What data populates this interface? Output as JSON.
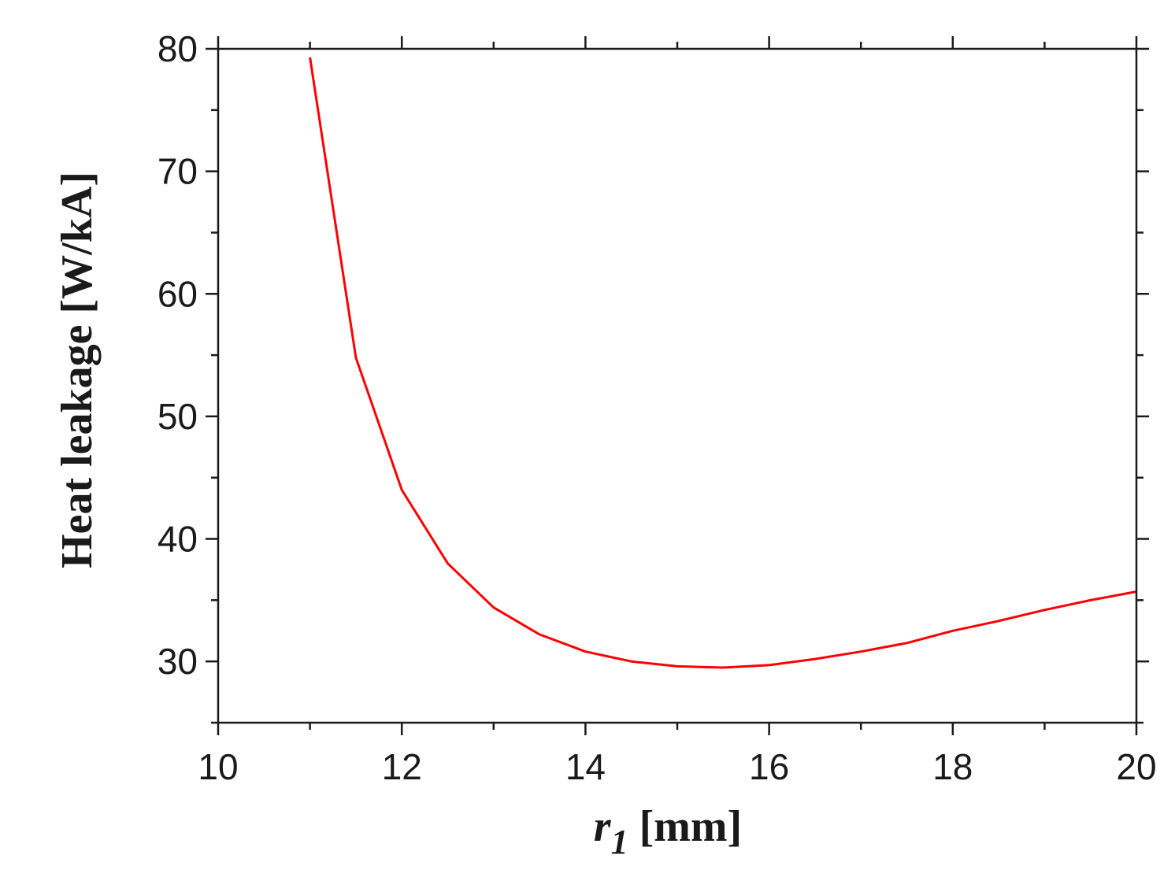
{
  "chart_data": {
    "type": "line",
    "title": "",
    "xlabel": "r1 [mm]",
    "xlabel_var": "r",
    "xlabel_sub": "1",
    "xlabel_unit": " [mm]",
    "ylabel": "Heat leakage [W/kA]",
    "xlim": [
      10,
      20
    ],
    "ylim": [
      25,
      80
    ],
    "x_major_ticks": [
      10,
      12,
      14,
      16,
      18,
      20
    ],
    "x_minor_ticks": [
      11,
      13,
      15,
      17,
      19
    ],
    "y_major_ticks": [
      30,
      40,
      50,
      60,
      70,
      80
    ],
    "y_minor_ticks": [
      25,
      35,
      45,
      55,
      65,
      75
    ],
    "x_tick_labels": [
      "10",
      "12",
      "14",
      "16",
      "18",
      "20"
    ],
    "y_tick_labels": [
      "30",
      "40",
      "50",
      "60",
      "70",
      "80"
    ],
    "grid": false,
    "series": [
      {
        "color": "#ff0000",
        "x": [
          11.0,
          11.5,
          12.0,
          12.5,
          13.0,
          13.5,
          14.0,
          14.5,
          15.0,
          15.5,
          16.0,
          16.5,
          17.0,
          17.5,
          18.0,
          18.5,
          19.0,
          19.5,
          20.0
        ],
        "y": [
          79.3,
          54.8,
          44.0,
          38.0,
          34.4,
          32.2,
          30.8,
          30.0,
          29.6,
          29.5,
          29.7,
          30.2,
          30.8,
          31.5,
          32.5,
          33.3,
          34.2,
          35.0,
          35.7
        ]
      }
    ]
  }
}
